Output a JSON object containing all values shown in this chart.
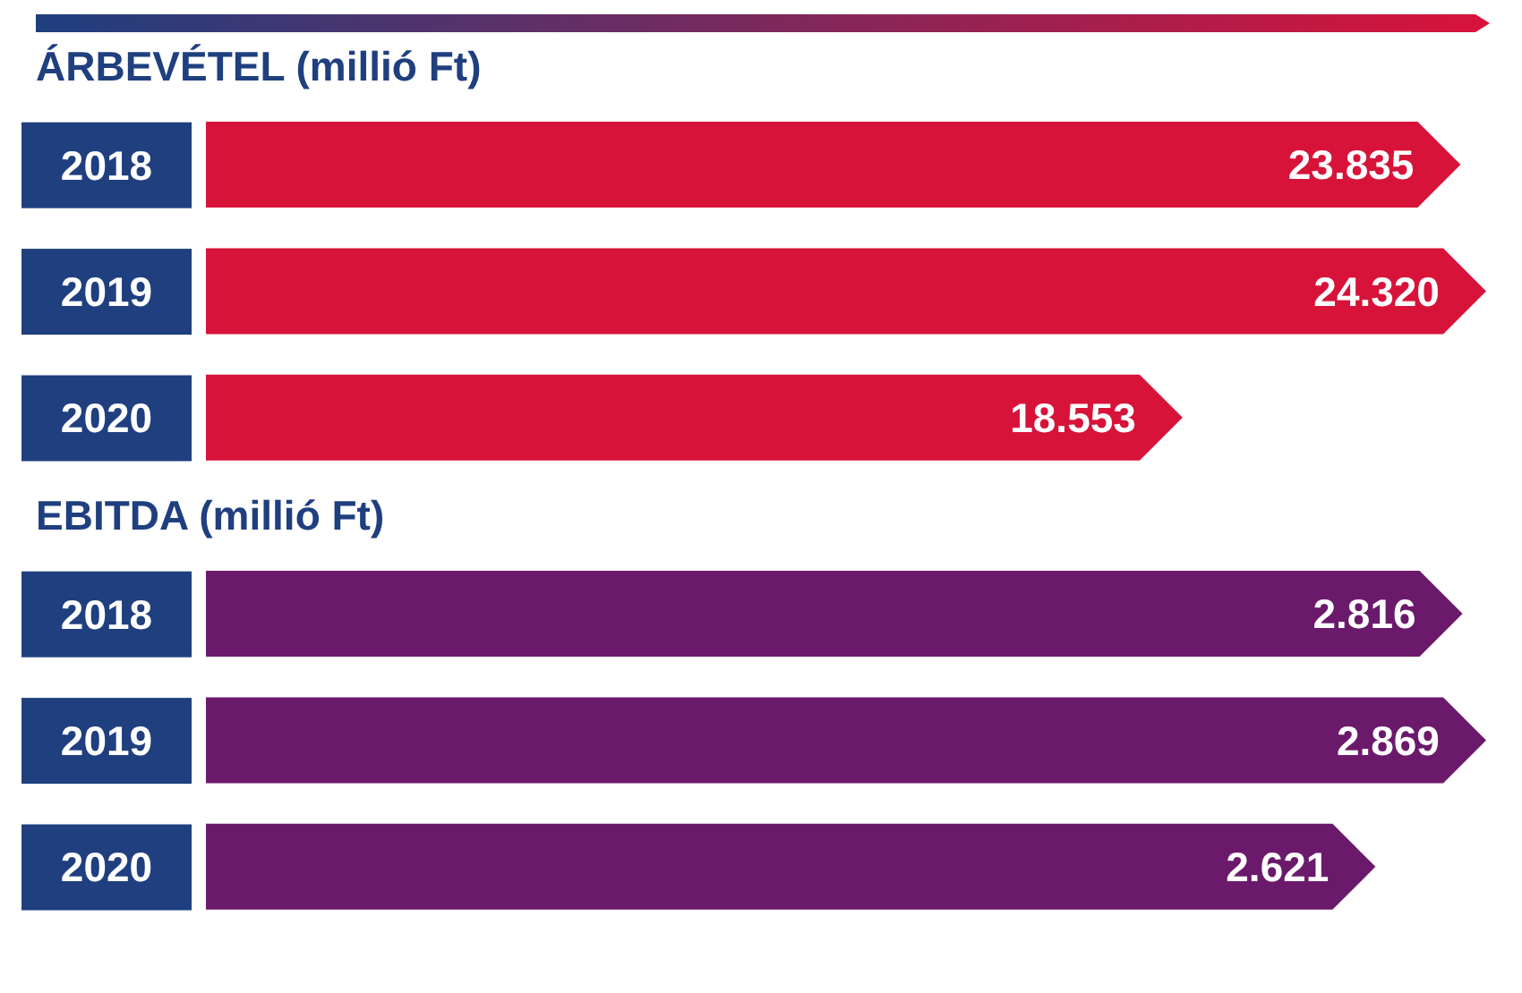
{
  "chart_data": [
    {
      "type": "bar",
      "orientation": "horizontal",
      "title": "ÁRBEVÉTEL (millió Ft)",
      "categories": [
        "2018",
        "2019",
        "2020"
      ],
      "values": [
        23835,
        24320,
        18553
      ],
      "value_labels": [
        "23.835",
        "24.320",
        "18.553"
      ],
      "color": "#d8133a",
      "tick_labels": "y"
    },
    {
      "type": "bar",
      "orientation": "horizontal",
      "title": "EBITDA (millió Ft)",
      "categories": [
        "2018",
        "2019",
        "2020"
      ],
      "values": [
        2816,
        2869,
        2621
      ],
      "value_labels": [
        "2.816",
        "2.869",
        "2.621"
      ],
      "color": "#6b1a6b",
      "tick_labels": "y"
    }
  ]
}
